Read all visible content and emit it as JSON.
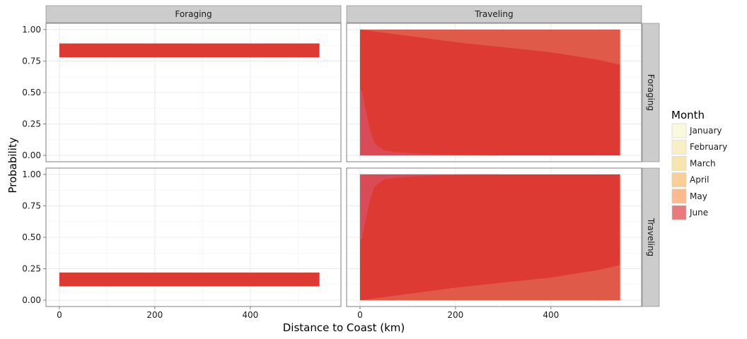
{
  "chart_data": {
    "type": "area",
    "facet_columns": [
      "Foraging",
      "Traveling"
    ],
    "facet_rows": [
      "Foraging",
      "Traveling"
    ],
    "xlabel": "Distance to Coast (km)",
    "ylabel": "Probability",
    "xlim": [
      -28,
      590
    ],
    "ylim": [
      -0.05,
      1.05
    ],
    "x_ticks": [
      0,
      200,
      400
    ],
    "y_ticks": [
      "0.00",
      "0.25",
      "0.50",
      "0.75",
      "1.00"
    ],
    "grid": true,
    "legend": {
      "title": "Month",
      "position": "right",
      "entries": [
        "January",
        "February",
        "March",
        "April",
        "May",
        "June"
      ],
      "colors": [
        "#FFFFCC",
        "#FFEDA0",
        "#FED976",
        "#FEB24C",
        "#FD8D3C",
        "#E31A1C"
      ]
    },
    "panels": [
      {
        "row": "Foraging",
        "col": "Foraging",
        "kind": "band",
        "x": [
          0,
          545
        ],
        "ymin": 0.78,
        "ymax": 0.89,
        "color": "#DC3A32"
      },
      {
        "row": "Traveling",
        "col": "Foraging",
        "kind": "band",
        "x": [
          0,
          545
        ],
        "ymin": 0.11,
        "ymax": 0.22,
        "color": "#DC3A32"
      },
      {
        "row": "Foraging",
        "col": "Traveling",
        "kind": "area",
        "color": "#DC3A32",
        "ribbons": [
          {
            "name": "upper",
            "color": "#E0604E",
            "x": [
              0,
              100,
              200,
              300,
              400,
              500,
              545
            ],
            "ymin": [
              1.0,
              0.95,
              0.9,
              0.86,
              0.82,
              0.76,
              0.72
            ],
            "ymax": [
              1.0,
              1.0,
              1.0,
              1.0,
              1.0,
              1.0,
              1.0
            ]
          },
          {
            "name": "lower",
            "color": "#D94F5E",
            "x": [
              0,
              5,
              10,
              20,
              30,
              50,
              80,
              120,
              170,
              220,
              300
            ],
            "ymin": [
              0.0,
              0.0,
              0.0,
              0.0,
              0.0,
              0.0,
              0.0,
              0.0,
              0.0,
              0.0,
              0.0
            ],
            "ymax": [
              0.53,
              0.5,
              0.4,
              0.22,
              0.1,
              0.04,
              0.025,
              0.015,
              0.008,
              0.004,
              0.0
            ]
          }
        ]
      },
      {
        "row": "Traveling",
        "col": "Traveling",
        "kind": "area",
        "color": "#DC3A32",
        "ribbons": [
          {
            "name": "upper",
            "color": "#D94F5E",
            "x": [
              0,
              5,
              10,
              20,
              30,
              50,
              80,
              120,
              170,
              220,
              300
            ],
            "ymin": [
              0.47,
              0.5,
              0.6,
              0.78,
              0.9,
              0.96,
              0.975,
              0.985,
              0.992,
              0.996,
              1.0
            ],
            "ymax": [
              1.0,
              1.0,
              1.0,
              1.0,
              1.0,
              1.0,
              1.0,
              1.0,
              1.0,
              1.0,
              1.0
            ]
          },
          {
            "name": "lower",
            "color": "#E0604E",
            "x": [
              0,
              100,
              200,
              300,
              400,
              500,
              545
            ],
            "ymin": [
              0.0,
              0.0,
              0.0,
              0.0,
              0.0,
              0.0,
              0.0
            ],
            "ymax": [
              0.0,
              0.05,
              0.1,
              0.14,
              0.18,
              0.24,
              0.28
            ]
          }
        ]
      }
    ]
  }
}
